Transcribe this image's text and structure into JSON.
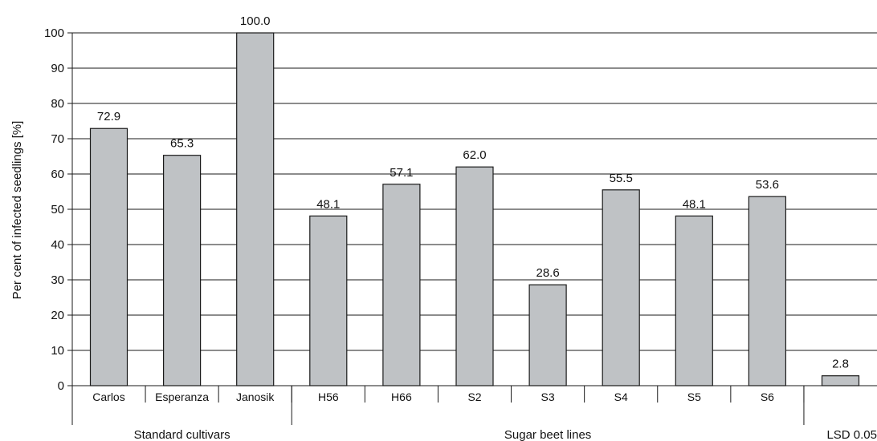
{
  "chart_data": {
    "type": "bar",
    "title": "",
    "xlabel": "",
    "ylabel": "Per cent of infected seedlings [%]",
    "ylim": [
      0,
      100
    ],
    "yticks": [
      "0",
      "10",
      "20",
      "30",
      "40",
      "50",
      "60",
      "70",
      "80",
      "90",
      "100"
    ],
    "grid": true,
    "legend": "none",
    "categories": [
      "Carlos",
      "Esperanza",
      "Janosik",
      "H56",
      "H66",
      "S2",
      "S3",
      "S4",
      "S5",
      "S6",
      ""
    ],
    "values": [
      72.9,
      65.3,
      100.0,
      48.1,
      57.1,
      62.0,
      28.6,
      55.5,
      48.1,
      53.6,
      2.8
    ],
    "value_labels": [
      "72.9",
      "65.3",
      "100.0",
      "48.1",
      "57.1",
      "62.0",
      "28.6",
      "55.5",
      "48.1",
      "53.6",
      "2.8"
    ],
    "groups": [
      {
        "label": "Standard cultivars",
        "count": 3
      },
      {
        "label": "Sugar beet lines",
        "count": 7
      },
      {
        "label": "LSD 0.05",
        "count": 1
      }
    ],
    "colors": {
      "bar_fill": "#bfc2c5",
      "bar_stroke": "#1a1a1a",
      "grid": "#1a1a1a"
    }
  }
}
